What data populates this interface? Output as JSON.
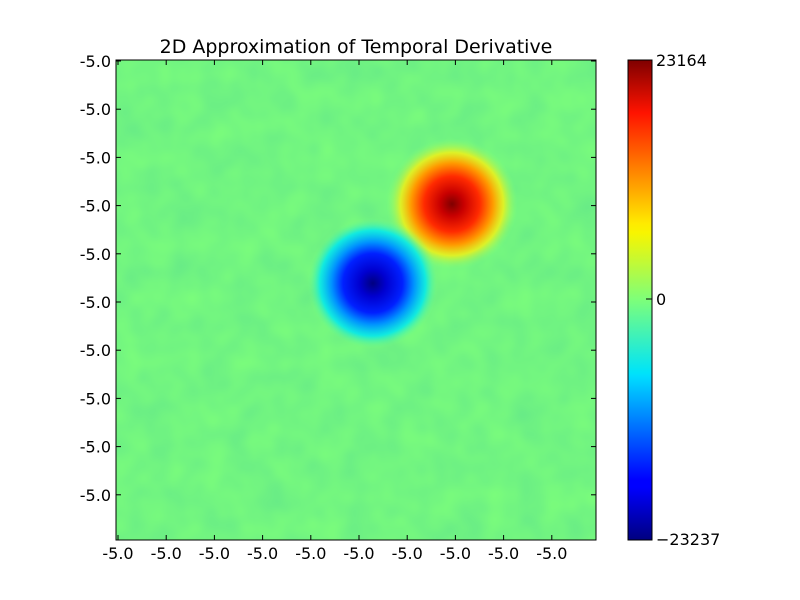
{
  "chart_data": {
    "type": "heatmap",
    "title": "2D Approximation of Temporal Derivative",
    "colormap": "jet",
    "background_level": 0,
    "features": [
      {
        "sign": "positive",
        "cx": 0.7,
        "cy": 0.3,
        "r": 0.125,
        "peak": 23164
      },
      {
        "sign": "negative",
        "cx": 0.535,
        "cy": 0.465,
        "r": 0.125,
        "peak": -23237
      }
    ],
    "x_tick_labels": [
      "-5.0",
      "-5.0",
      "-5.0",
      "-5.0",
      "-5.0",
      "-5.0",
      "-5.0",
      "-5.0",
      "-5.0",
      "-5.0"
    ],
    "y_tick_labels": [
      "-5.0",
      "-5.0",
      "-5.0",
      "-5.0",
      "-5.0",
      "-5.0",
      "-5.0",
      "-5.0",
      "-5.0",
      "-5.0"
    ],
    "colorbar": {
      "min": -23237,
      "max": 23164,
      "tick_labels": [
        "23164",
        "0",
        "−23237"
      ]
    }
  }
}
